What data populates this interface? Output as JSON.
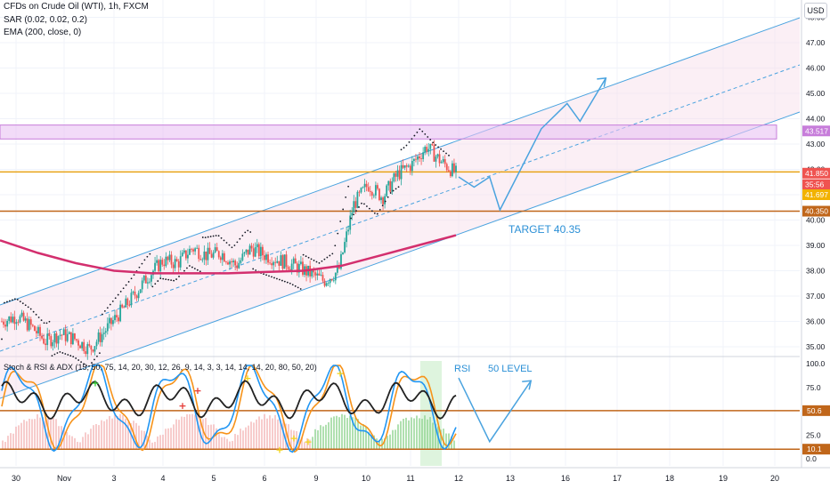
{
  "header": {
    "title": "CFDs on Crude Oil (WTI), 1h, FXCM",
    "indicator_sar": "SAR (0.02, 0.02, 0.2)",
    "indicator_ema": "EMA (200, close, 0)",
    "currency_button": "USD"
  },
  "oscillator": {
    "title": "Stoch & RSI & ADX (15, 50, 75, 14, 20, 30, 12, 26, 9, 14, 3, 3, 14, 14, 14, 20, 80, 50, 20)"
  },
  "annotations": {
    "target": "TARGET 40.35",
    "rsi": "RSI",
    "level": "50  LEVEL"
  },
  "colors": {
    "price_up": "#26a69a",
    "price_down": "#ef5350",
    "ema": "#d32f6e",
    "channel": "#4aa3df",
    "zone": "#c77dda",
    "level_line": "#c0661a",
    "rsi_blue": "#2196f3",
    "stoch_orange": "#f7931a",
    "adx_black": "#222222"
  },
  "chart_data": [
    {
      "type": "line",
      "description_hidden": false,
      "x": [
        "30",
        "Nov",
        "3",
        "4",
        "5",
        "6",
        "9",
        "10",
        "11",
        "12",
        "13",
        "16",
        "17",
        "18",
        "19",
        "20"
      ],
      "y_axis_ticks": [
        "35.00",
        "36.00",
        "37.00",
        "38.00",
        "39.00",
        "40.00",
        "41.00",
        "42.00",
        "43.00",
        "44.00",
        "45.00",
        "46.00",
        "47.00",
        "48.00"
      ],
      "ylim": [
        34.6,
        48.6
      ],
      "price_path": [
        36.0,
        36.2,
        35.8,
        35.2,
        35.5,
        35.3,
        34.9,
        35.6,
        36.3,
        37.0,
        37.8,
        38.4,
        38.3,
        38.9,
        38.6,
        38.7,
        38.2,
        38.9,
        38.6,
        38.4,
        38.2,
        37.9,
        37.6,
        38.0,
        40.6,
        41.4,
        40.9,
        41.8,
        42.2,
        42.9,
        42.3,
        41.85
      ],
      "ema200": [
        39.2,
        38.7,
        38.3,
        38.0,
        37.9,
        37.9,
        37.9,
        37.95,
        38.0,
        38.2,
        38.6,
        39.0,
        39.4
      ],
      "series": [
        {
          "name": "SAR (0.02, 0.02, 0.2)"
        },
        {
          "name": "EMA (200, close, 0)"
        }
      ],
      "price_labels": [
        {
          "value": "43.517",
          "price": 43.517,
          "color": "#c77dda"
        },
        {
          "value": "41.850",
          "price": 41.85,
          "color": "#ef5350"
        },
        {
          "value": "35:56",
          "price": 41.4,
          "color": "#ef5350"
        },
        {
          "value": "41.697",
          "price": 41.0,
          "color": "#f2b200"
        },
        {
          "value": "40.350",
          "price": 40.35,
          "color": "#c0661a"
        }
      ],
      "zone": {
        "from": 43.2,
        "to": 43.75
      },
      "levels": [
        41.9,
        40.35
      ],
      "projection": [
        [
          12.0,
          41.7
        ],
        [
          12.3,
          41.3
        ],
        [
          12.6,
          41.7
        ],
        [
          12.8,
          40.4
        ],
        [
          13.6,
          43.6
        ],
        [
          14.1,
          44.6
        ],
        [
          14.35,
          43.9
        ],
        [
          14.85,
          45.6
        ]
      ]
    },
    {
      "type": "line",
      "ylim": [
        0,
        100
      ],
      "y_axis_ticks": [
        "0.0",
        "25.0",
        "75.0",
        "100.0"
      ],
      "level_labels": [
        {
          "value": "50.6",
          "level": 50.6
        },
        {
          "value": "10.1",
          "level": 10.1
        }
      ],
      "series": [
        {
          "name": "RSI"
        }
      ],
      "projection": [
        [
          12.0,
          85
        ],
        [
          12.6,
          18
        ],
        [
          13.4,
          82
        ]
      ]
    }
  ]
}
